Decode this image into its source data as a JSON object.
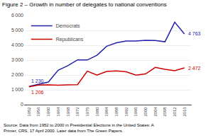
{
  "chart_data": {
    "type": "line",
    "title": "Figure 2 – Growth in number of delegates to national conventions",
    "x": [
      1952,
      1956,
      1960,
      1964,
      1968,
      1972,
      1976,
      1980,
      1984,
      1988,
      1992,
      1996,
      2000,
      2004,
      2008,
      2012,
      2016
    ],
    "series": [
      {
        "name": "Democrats",
        "color": "#2222aa",
        "values": [
          1230,
          1372,
          1521,
          2316,
          2622,
          3016,
          3008,
          3331,
          3933,
          4162,
          4288,
          4289,
          4339,
          4322,
          4233,
          5554,
          4763
        ]
      },
      {
        "name": "Republicans",
        "color": "#cc0000",
        "values": [
          1206,
          1323,
          1331,
          1308,
          1333,
          1348,
          2259,
          1994,
          2235,
          2277,
          2210,
          1990,
          2066,
          2509,
          2380,
          2286,
          2472
        ]
      }
    ],
    "xlim": [
      1950,
      2019
    ],
    "xticks": [
      1952,
      1956,
      1960,
      1964,
      1968,
      1972,
      1976,
      1980,
      1984,
      1988,
      1992,
      1996,
      2000,
      2004,
      2008,
      2012,
      2016
    ],
    "ylim": [
      0,
      6000
    ],
    "yticks": [
      0,
      {
        "value": 1000,
        "label": "1 000"
      },
      {
        "value": 2000,
        "label": "2 000"
      },
      {
        "value": 3000,
        "label": "3 000"
      },
      {
        "value": 4000,
        "label": "4 000"
      },
      {
        "value": 5000,
        "label": "5 000"
      },
      {
        "value": 6000,
        "label": "6 000"
      }
    ],
    "grid": "y",
    "legend": "upper left",
    "annotations": [
      {
        "text": "1 230",
        "x": 1952,
        "y": 1230,
        "series": "Democrats"
      },
      {
        "text": "1 206",
        "x": 1952,
        "y": 1206,
        "series": "Republicans"
      },
      {
        "text": "4 763",
        "x": 2016,
        "y": 4763,
        "series": "Democrats"
      },
      {
        "text": "2 472",
        "x": 2016,
        "y": 2472,
        "series": "Republicans"
      }
    ],
    "source": [
      "Source: Data from 1952 to 2000 in Presidential Elections in the United States: A",
      "Primer, CRS, 17 April 2000. Later data from The Green Papers."
    ]
  }
}
